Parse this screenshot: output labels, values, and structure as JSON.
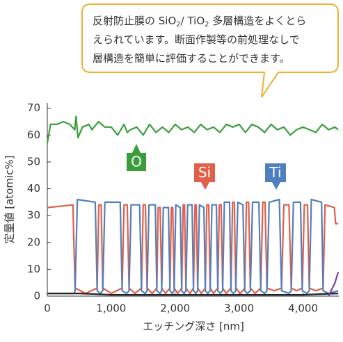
{
  "chart_data": {
    "type": "line",
    "callout": {
      "lines": [
        [
          "反射防止膜の SiO",
          "2",
          "/ TiO",
          "2",
          " 多層構造をよくとら"
        ],
        [
          "えられています。断面作製等の前処理なしで"
        ],
        [
          "層構造を簡単に評価することができます。"
        ]
      ]
    },
    "xlabel": "エッチング深さ [nm]",
    "ylabel": "定量値 [atomic%]",
    "xlim": [
      0,
      4560
    ],
    "ylim": [
      0,
      72
    ],
    "xticks": [
      0,
      {
        "value": 1000,
        "label": "1,000"
      },
      {
        "value": 2000,
        "label": "2,000"
      },
      {
        "value": 3000,
        "label": "3,000"
      },
      {
        "value": 4000,
        "label": "4,000"
      }
    ],
    "yticks": [
      0,
      10,
      20,
      30,
      40,
      50,
      60,
      70
    ],
    "series": [
      {
        "name": "O",
        "color": "#3a9e3a",
        "x": [
          0,
          50,
          150,
          250,
          350,
          430,
          450,
          480,
          550,
          650,
          700,
          800,
          900,
          1000,
          1100,
          1200,
          1250,
          1300,
          1400,
          1500,
          1600,
          1700,
          1800,
          1900,
          2000,
          2100,
          2200,
          2300,
          2400,
          2500,
          2600,
          2700,
          2800,
          2900,
          3000,
          3100,
          3200,
          3300,
          3400,
          3500,
          3600,
          3700,
          3800,
          3900,
          4000,
          4100,
          4200,
          4300,
          4400,
          4500,
          4550
        ],
        "values": [
          57,
          64,
          64,
          65,
          64,
          62,
          67,
          59,
          63,
          64,
          62,
          65,
          63,
          63,
          60,
          64,
          61,
          62,
          63,
          60,
          64,
          61,
          63,
          61,
          64,
          62,
          63,
          61,
          64,
          62,
          63,
          61,
          64,
          63,
          64,
          61,
          64,
          63,
          61,
          64,
          62,
          63,
          60,
          62,
          63,
          62,
          61,
          64,
          62,
          63,
          62
        ]
      },
      {
        "name": "Si",
        "color": "#e0604a",
        "x": [
          0,
          400,
          434,
          600,
          780,
          805,
          842,
          867,
          1000,
          1171,
          1200,
          1250,
          1279,
          1370,
          1474,
          1500,
          1535,
          1561,
          1640,
          1713,
          1735,
          1765,
          1789,
          1850,
          1919,
          1940,
          1962,
          1984,
          2040,
          2103,
          2125,
          2146,
          2168,
          2230,
          2287,
          2310,
          2330,
          2352,
          2410,
          2472,
          2495,
          2525,
          2547,
          2600,
          2667,
          2690,
          2720,
          2743,
          2800,
          2873,
          2898,
          2925,
          2948,
          3020,
          3089,
          3115,
          3150,
          3176,
          3250,
          3339,
          3370,
          3405,
          3436,
          3550,
          3664,
          3700,
          3780,
          3816,
          3900,
          3989,
          4020,
          4070,
          4098,
          4200,
          4314,
          4345,
          4490,
          4510,
          4550
        ],
        "values": [
          33,
          34,
          3,
          1,
          3,
          34,
          34,
          3,
          1,
          3,
          34,
          34,
          3,
          1,
          3,
          34,
          34,
          3,
          1,
          3,
          33,
          33,
          3,
          1,
          3,
          33,
          33,
          3,
          1,
          3,
          34,
          34,
          3,
          1,
          3,
          34,
          34,
          3,
          1,
          3,
          34,
          34,
          3,
          1,
          3,
          34,
          34,
          3,
          1,
          3,
          35,
          35,
          3,
          1,
          3,
          35,
          35,
          3,
          1,
          3,
          35,
          35,
          3,
          2,
          3,
          34,
          34,
          3,
          2,
          3,
          34,
          34,
          3,
          2,
          3,
          34,
          33,
          27,
          27
        ]
      },
      {
        "name": "Ti",
        "color": "#4f7fc0",
        "x": [
          0,
          420,
          434,
          470,
          750,
          780,
          830,
          867,
          900,
          1140,
          1171,
          1240,
          1279,
          1310,
          1444,
          1474,
          1530,
          1561,
          1590,
          1690,
          1713,
          1760,
          1789,
          1815,
          1895,
          1919,
          1955,
          1984,
          2010,
          2080,
          2103,
          2140,
          2168,
          2195,
          2265,
          2287,
          2325,
          2352,
          2380,
          2450,
          2472,
          2510,
          2547,
          2575,
          2645,
          2667,
          2705,
          2743,
          2770,
          2850,
          2873,
          2910,
          2948,
          2980,
          3060,
          3089,
          3130,
          3176,
          3210,
          3310,
          3339,
          3400,
          3436,
          3470,
          3630,
          3664,
          3780,
          3816,
          3850,
          3960,
          3989,
          4060,
          4098,
          4130,
          4290,
          4314,
          4400,
          4550
        ],
        "values": [
          1,
          1,
          2,
          36,
          35,
          2,
          1,
          2,
          35,
          35,
          2,
          1,
          2,
          34,
          34,
          2,
          1,
          2,
          34,
          34,
          2,
          1,
          2,
          33,
          33,
          2,
          1,
          2,
          34,
          33,
          2,
          1,
          2,
          34,
          34,
          2,
          1,
          2,
          34,
          33,
          2,
          1,
          2,
          34,
          34,
          2,
          1,
          2,
          35,
          35,
          2,
          1,
          2,
          35,
          34,
          2,
          1,
          2,
          35,
          35,
          2,
          1,
          2,
          35,
          36,
          2,
          1,
          2,
          35,
          35,
          2,
          1,
          2,
          36,
          35,
          2,
          1,
          2
        ]
      },
      {
        "color": "#222222",
        "x": [
          0,
          500,
          1000,
          1500,
          2000,
          2500,
          3000,
          3500,
          4000,
          4550
        ],
        "values": [
          1,
          1,
          0.5,
          0.5,
          0.5,
          0.5,
          0.5,
          0.5,
          0.5,
          1
        ]
      },
      {
        "color": "#7a3fa0",
        "x": [
          4400,
          4500,
          4550
        ],
        "values": [
          0,
          5,
          9
        ]
      }
    ]
  }
}
